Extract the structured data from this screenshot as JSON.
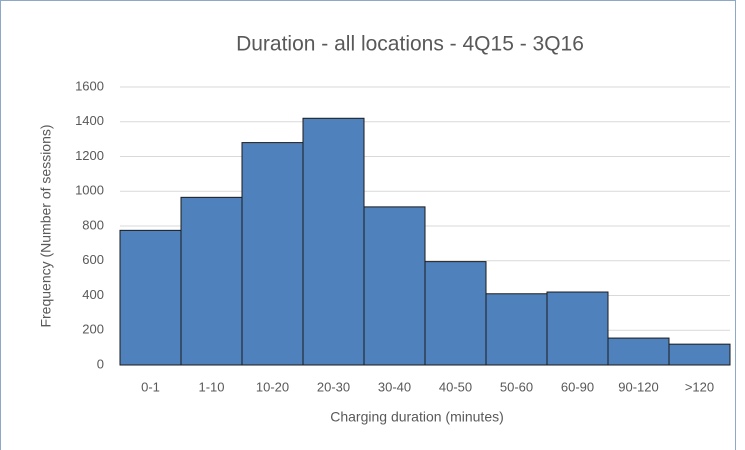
{
  "chart_data": {
    "type": "bar",
    "title": "Duration - all locations - 4Q15 - 3Q16",
    "x_label": "Charging duration (minutes)",
    "y_label": "Frequency (Number of sessions)",
    "categories": [
      "0-1",
      "1-10",
      "10-20",
      "20-30",
      "30-40",
      "40-50",
      "50-60",
      "60-90",
      "90-120",
      ">120"
    ],
    "values": [
      775,
      965,
      1280,
      1420,
      910,
      595,
      410,
      420,
      155,
      120
    ],
    "color": "#4f81bd",
    "ylim": [
      0,
      1600
    ],
    "yticks": [
      0,
      200,
      400,
      600,
      800,
      1000,
      1200,
      1400,
      1600
    ],
    "grid": true
  }
}
